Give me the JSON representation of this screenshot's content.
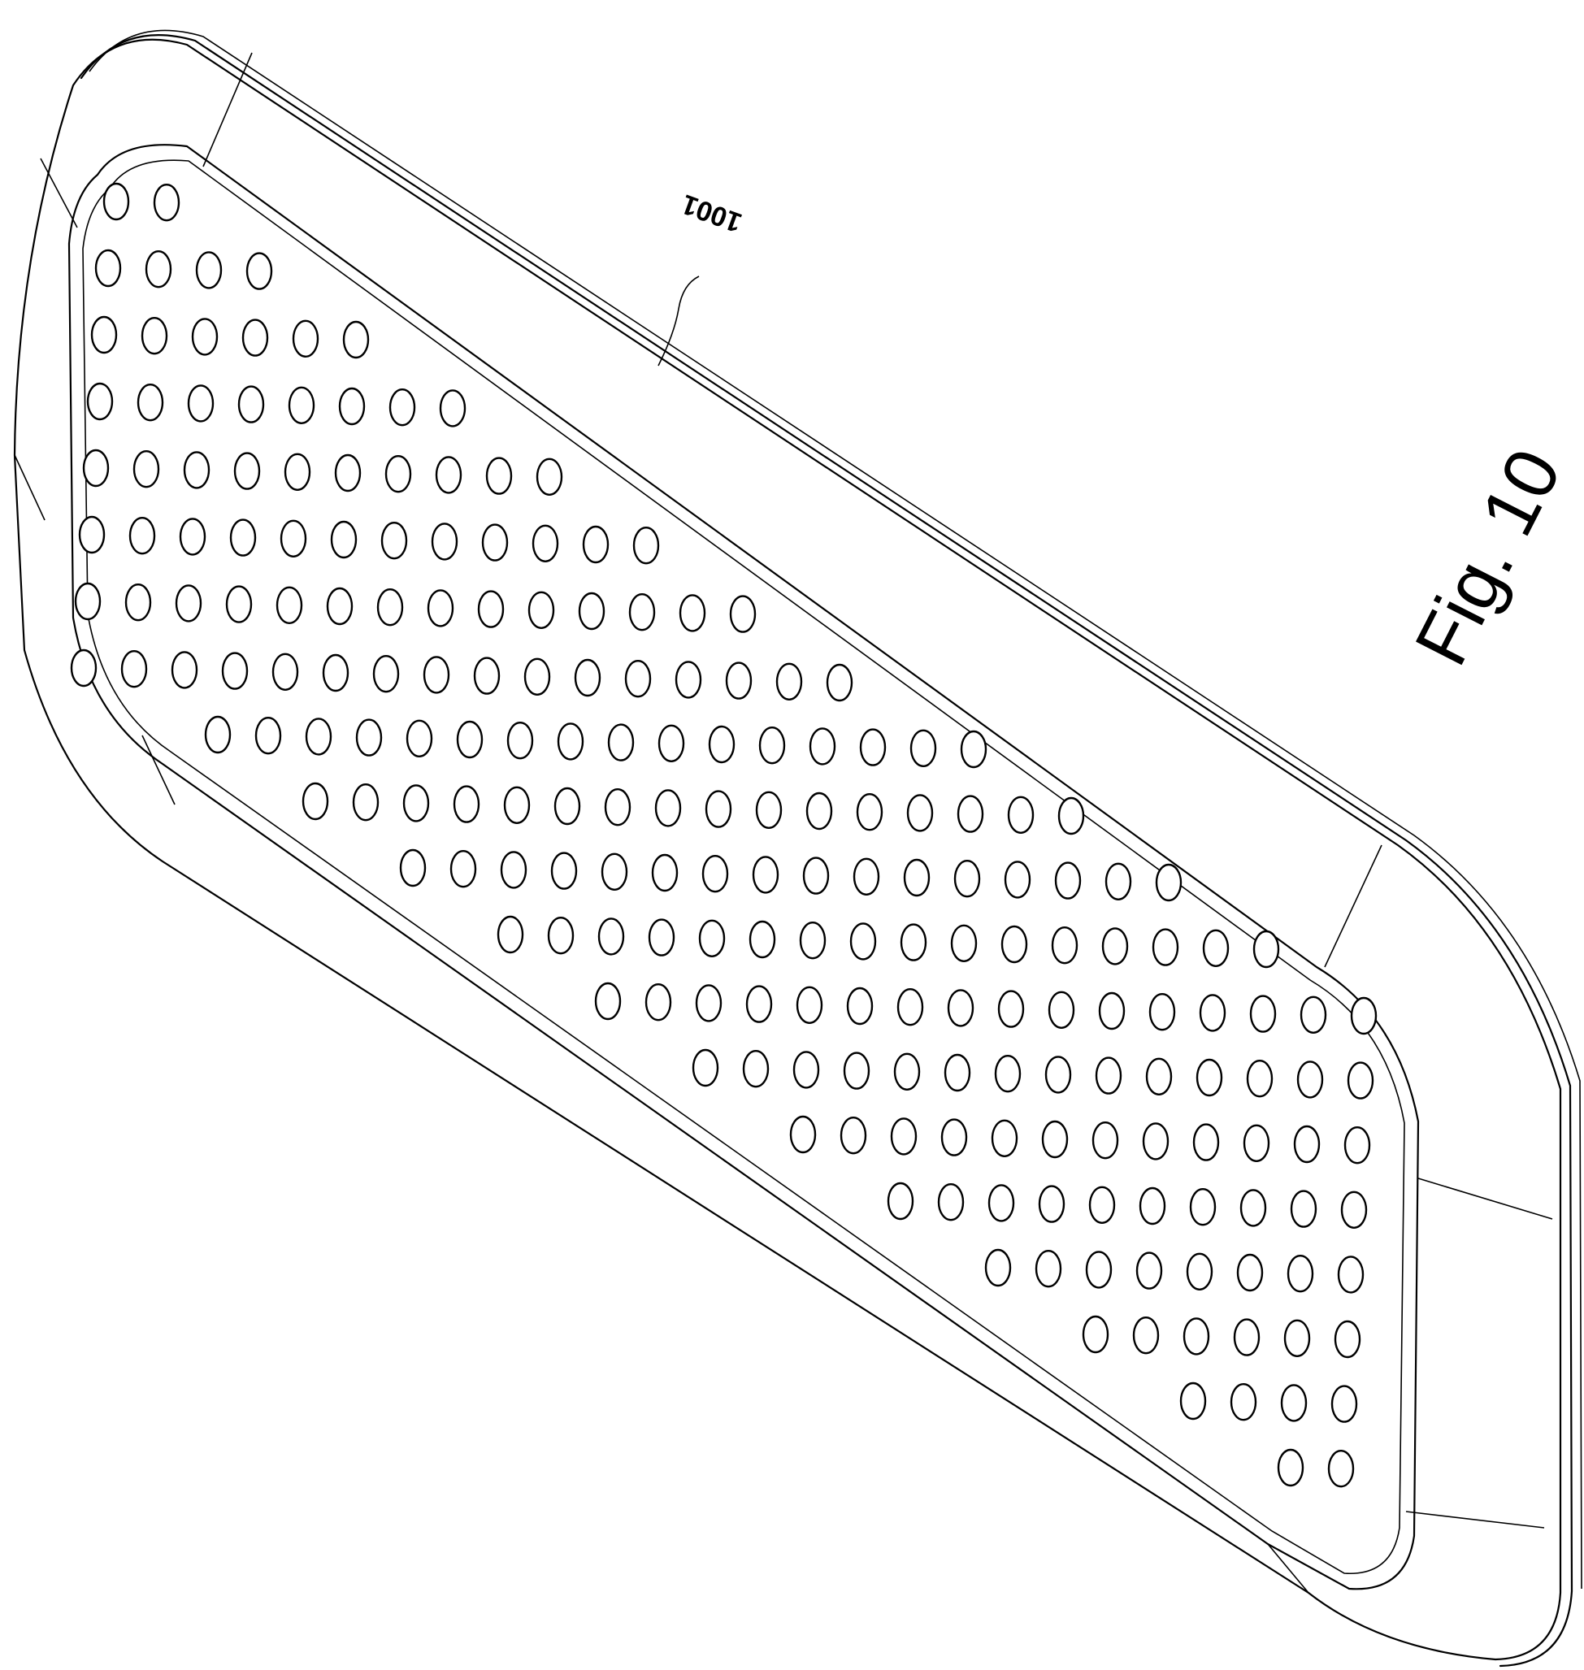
{
  "figure": {
    "label": "Fig. 10",
    "reference_numeral": "1001"
  },
  "drawing": {
    "subject": "perforated-panel",
    "hole_shape": "ellipse",
    "line_color": "#000000",
    "background_color": "#ffffff"
  }
}
